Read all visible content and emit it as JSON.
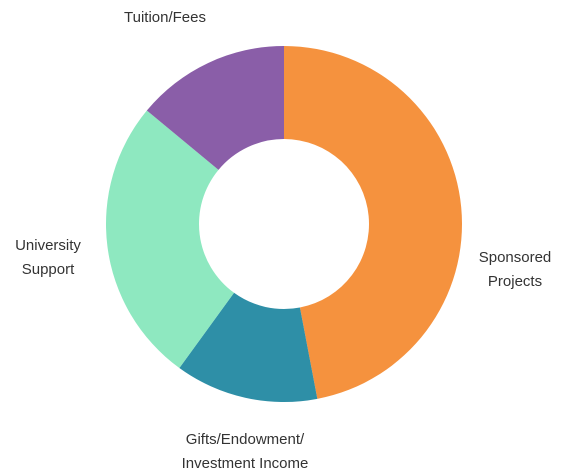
{
  "chart_data": {
    "type": "donut",
    "categories": [
      "Sponsored Projects",
      "Gifts/Endowment/ Investment Income",
      "University Support",
      "Tuition/Fees"
    ],
    "values": [
      47,
      13,
      26,
      14
    ],
    "colors": [
      "#f5923e",
      "#2e8fa7",
      "#8ee8c0",
      "#8a5ea8"
    ]
  }
}
